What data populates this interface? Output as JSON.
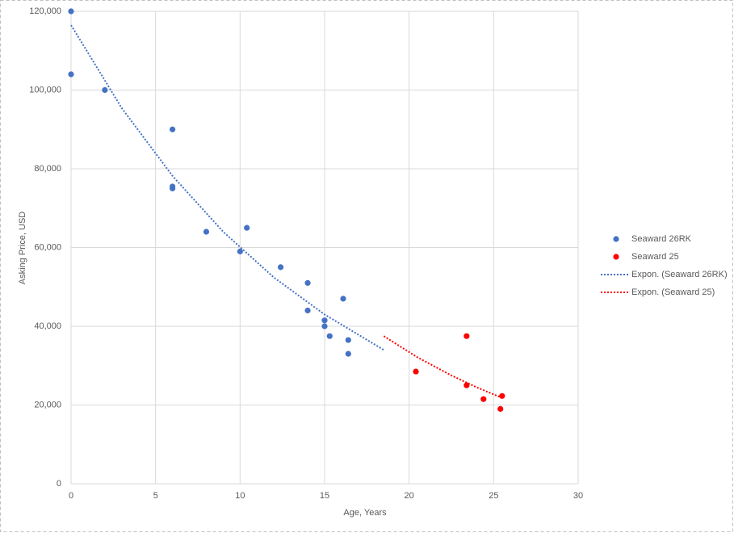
{
  "chart_data": {
    "type": "scatter",
    "xlabel": "Age, Years",
    "ylabel": "Asking Price, USD",
    "xlim": [
      0,
      30
    ],
    "xticks": [
      0,
      5,
      10,
      15,
      20,
      25,
      30
    ],
    "ylim": [
      0,
      120000
    ],
    "yticks": [
      {
        "value": 0,
        "label": "0"
      },
      {
        "value": 20000,
        "label": "20,000"
      },
      {
        "value": 40000,
        "label": "40,000"
      },
      {
        "value": 60000,
        "label": "60,000"
      },
      {
        "value": 80000,
        "label": "80,000"
      },
      {
        "value": 100000,
        "label": "100,000"
      },
      {
        "value": 120000,
        "label": "120,000"
      }
    ],
    "grid": true,
    "legend": "right",
    "series": [
      {
        "name": "Seaward 26RK",
        "color": "#4472c4",
        "x": [
          0,
          0,
          2,
          6,
          6,
          6,
          8,
          10,
          10.4,
          12.4,
          14,
          14,
          15,
          15,
          15.3,
          16.1,
          16.4,
          16.4
        ],
        "values": [
          120000,
          104000,
          100000,
          90000,
          75500,
          75000,
          64000,
          59000,
          65000,
          55000,
          51000,
          44000,
          41500,
          40000,
          37500,
          47000,
          36500,
          33000
        ]
      },
      {
        "name": "Seaward 25",
        "color": "#ff0000",
        "x": [
          20.4,
          23.4,
          23.4,
          24.4,
          25.4,
          25.5
        ],
        "values": [
          28500,
          37500,
          25000,
          21500,
          19000,
          22300
        ]
      }
    ],
    "trendlines": [
      {
        "name": "Expon. (Seaward 26RK)",
        "color": "#4472c4",
        "x": [
          0,
          3,
          6,
          9,
          12,
          15,
          18.5
        ],
        "values": [
          116500,
          95400,
          78200,
          64000,
          52400,
          43000,
          34000
        ]
      },
      {
        "name": "Expon. (Seaward 25)",
        "color": "#ff0000",
        "x": [
          18.5,
          20.5,
          22.5,
          24,
          25.5
        ],
        "values": [
          37500,
          32100,
          27500,
          24500,
          21800
        ]
      }
    ]
  }
}
